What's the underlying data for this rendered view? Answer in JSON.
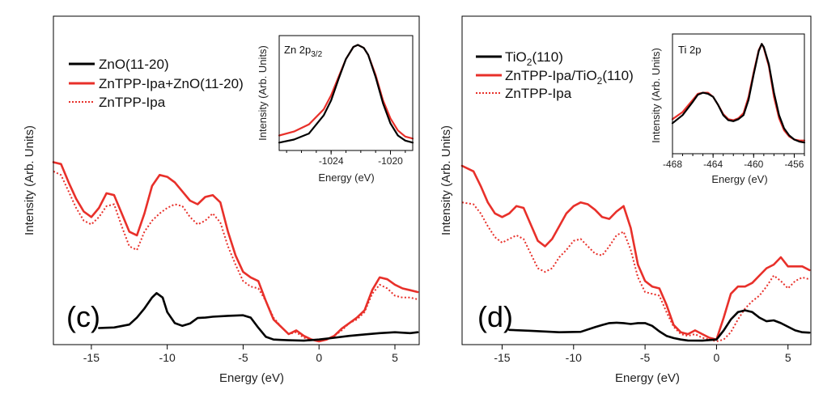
{
  "chart_data": [
    {
      "type": "line",
      "panel_label": "(c)",
      "xlabel": "Energy (eV)",
      "ylabel": "Intensity (Arb. Units)",
      "xlim": [
        -17.5,
        6.6
      ],
      "ylim": [
        0,
        1
      ],
      "xticks": [
        -15,
        -10,
        -5,
        0,
        5
      ],
      "y_ticks_labeled": false,
      "grid": false,
      "legend_position": "top-left",
      "series": [
        {
          "name": "ZnO(11-20)",
          "color": "#000000",
          "style": "solid",
          "x": [
            -14.5,
            -13.5,
            -12.5,
            -12,
            -11.5,
            -11,
            -10.7,
            -10.3,
            -10,
            -9.5,
            -9,
            -8.5,
            -8,
            -7.5,
            -7,
            -6,
            -5,
            -4.5,
            -4,
            -3.5,
            -3,
            -2.5,
            -2,
            -1,
            0,
            1,
            2,
            3,
            4,
            5,
            6,
            6.5
          ],
          "y": [
            0.073,
            0.076,
            0.092,
            0.13,
            0.18,
            0.24,
            0.264,
            0.24,
            0.16,
            0.1,
            0.085,
            0.098,
            0.128,
            0.13,
            0.135,
            0.14,
            0.143,
            0.13,
            0.075,
            0.025,
            0.01,
            0.008,
            0.006,
            0.004,
            0.01,
            0.02,
            0.03,
            0.038,
            0.045,
            0.05,
            0.045,
            0.05
          ]
        },
        {
          "name": "ZnTPP-Ipa+ZnO(11-20)",
          "color": "#e8302a",
          "style": "solid",
          "x": [
            -17.5,
            -17,
            -16.5,
            -16,
            -15.5,
            -15,
            -14.5,
            -14,
            -13.5,
            -13,
            -12.5,
            -12,
            -11.5,
            -11,
            -10.5,
            -10,
            -9.5,
            -9,
            -8.5,
            -8,
            -7.5,
            -7,
            -6.5,
            -6,
            -5.5,
            -5,
            -4.5,
            -4,
            -3.5,
            -3,
            -2.5,
            -2,
            -1.5,
            -1,
            -0.5,
            0,
            0.5,
            1,
            1.5,
            2,
            2.5,
            3,
            3.5,
            4,
            4.5,
            5,
            5.5,
            6,
            6.5
          ],
          "y": [
            0.98,
            0.97,
            0.87,
            0.78,
            0.71,
            0.68,
            0.73,
            0.81,
            0.8,
            0.7,
            0.6,
            0.58,
            0.7,
            0.85,
            0.91,
            0.9,
            0.87,
            0.82,
            0.77,
            0.75,
            0.79,
            0.8,
            0.76,
            0.6,
            0.47,
            0.38,
            0.35,
            0.33,
            0.22,
            0.12,
            0.08,
            0.04,
            0.06,
            0.03,
            0.01,
            0.0,
            0.01,
            0.03,
            0.07,
            0.1,
            0.13,
            0.17,
            0.28,
            0.35,
            0.34,
            0.31,
            0.29,
            0.28,
            0.27
          ]
        },
        {
          "name": "ZnTPP-Ipa",
          "color": "#e8302a",
          "style": "dotted",
          "x": [
            -17.5,
            -17,
            -16.5,
            -16,
            -15.5,
            -15,
            -14.5,
            -14,
            -13.5,
            -13,
            -12.5,
            -12,
            -11.5,
            -11,
            -10.5,
            -10,
            -9.5,
            -9,
            -8.5,
            -8,
            -7.5,
            -7,
            -6.5,
            -6,
            -5.5,
            -5,
            -4.5,
            -4,
            -3.5,
            -3,
            -2.5,
            -2,
            -1.5,
            -1,
            -0.5,
            0,
            0.5,
            1,
            1.5,
            2,
            2.5,
            3,
            3.5,
            4,
            4.5,
            5,
            5.5,
            6,
            6.5
          ],
          "y": [
            0.93,
            0.91,
            0.82,
            0.73,
            0.66,
            0.64,
            0.68,
            0.74,
            0.75,
            0.63,
            0.52,
            0.5,
            0.6,
            0.66,
            0.7,
            0.73,
            0.75,
            0.74,
            0.68,
            0.64,
            0.66,
            0.7,
            0.65,
            0.52,
            0.42,
            0.33,
            0.3,
            0.29,
            0.22,
            0.13,
            0.08,
            0.04,
            0.05,
            0.02,
            0.01,
            0.0,
            0.01,
            0.03,
            0.06,
            0.1,
            0.12,
            0.16,
            0.26,
            0.31,
            0.29,
            0.25,
            0.24,
            0.24,
            0.23
          ]
        }
      ],
      "inset": {
        "title": "Zn 2p3/2",
        "title_main": "Zn 2p",
        "title_sub": "3/2",
        "xlabel": "Energy (eV)",
        "ylabel": "Intensity (Arb. Units)",
        "xlim": [
          -1027.5,
          -1018.5
        ],
        "xticks": [
          -1024,
          -1020
        ],
        "ylim": [
          0,
          1.06
        ],
        "series": [
          {
            "name": "ZnO(11-20)",
            "color": "#000000",
            "x": [
              -1027.5,
              -1026.5,
              -1025.5,
              -1024.5,
              -1024,
              -1023.5,
              -1023,
              -1022.5,
              -1022.2,
              -1021.8,
              -1021.5,
              -1021,
              -1020.5,
              -1020,
              -1019.5,
              -1019,
              -1018.5
            ],
            "y": [
              0.03,
              0.06,
              0.12,
              0.3,
              0.45,
              0.66,
              0.86,
              0.98,
              1.0,
              0.97,
              0.9,
              0.68,
              0.42,
              0.22,
              0.1,
              0.05,
              0.03
            ]
          },
          {
            "name": "ZnTPP-Ipa+ZnO(11-20)",
            "color": "#e8302a",
            "x": [
              -1027.5,
              -1026.5,
              -1025.5,
              -1024.5,
              -1024,
              -1023.5,
              -1023,
              -1022.5,
              -1022.2,
              -1021.8,
              -1021.5,
              -1021,
              -1020.5,
              -1020,
              -1019.5,
              -1019,
              -1018.5
            ],
            "y": [
              0.1,
              0.14,
              0.21,
              0.36,
              0.5,
              0.68,
              0.86,
              0.98,
              1.0,
              0.97,
              0.9,
              0.7,
              0.45,
              0.27,
              0.15,
              0.09,
              0.07
            ]
          }
        ]
      }
    },
    {
      "type": "line",
      "panel_label": "(d)",
      "xlabel": "Energy (eV)",
      "ylabel": "Intensity (Arb. Units)",
      "xlim": [
        -17.8,
        6.6
      ],
      "ylim": [
        0,
        1
      ],
      "xticks": [
        -15,
        -10,
        -5,
        0,
        5
      ],
      "y_ticks_labeled": false,
      "grid": false,
      "legend_position": "top-left",
      "series": [
        {
          "name": "TiO2(110)",
          "name_main": "TiO",
          "name_sub": "2",
          "name_tail": "(110)",
          "color": "#000000",
          "style": "solid",
          "x": [
            -14.5,
            -13,
            -11,
            -9.5,
            -8.5,
            -8,
            -7.5,
            -7,
            -6.5,
            -6,
            -5.5,
            -5,
            -4.5,
            -4,
            -3.5,
            -3,
            -2.5,
            -2,
            -1,
            0,
            0.5,
            1,
            1.5,
            2,
            2.5,
            3,
            3.5,
            4,
            4.5,
            5,
            5.5,
            6,
            6.5
          ],
          "y": [
            0.063,
            0.058,
            0.05,
            0.052,
            0.078,
            0.09,
            0.1,
            0.102,
            0.1,
            0.095,
            0.1,
            0.1,
            0.085,
            0.055,
            0.03,
            0.018,
            0.01,
            0.005,
            0.004,
            0.01,
            0.06,
            0.12,
            0.16,
            0.17,
            0.16,
            0.13,
            0.11,
            0.115,
            0.1,
            0.08,
            0.06,
            0.05,
            0.048
          ]
        },
        {
          "name": "ZnTPP-Ipa/TiO2(110)",
          "name_main": "ZnTPP-Ipa/TiO",
          "name_sub": "2",
          "name_tail": "(110)",
          "color": "#e8302a",
          "style": "solid",
          "x": [
            -17.8,
            -17,
            -16.5,
            -16,
            -15.5,
            -15,
            -14.5,
            -14,
            -13.5,
            -13,
            -12.5,
            -12,
            -11.5,
            -11,
            -10.5,
            -10,
            -9.5,
            -9,
            -8.5,
            -8,
            -7.5,
            -7,
            -6.5,
            -6,
            -5.5,
            -5,
            -4.5,
            -4,
            -3.5,
            -3,
            -2.5,
            -2,
            -1.5,
            -1,
            -0.5,
            0,
            0.5,
            1,
            1.5,
            2,
            2.5,
            3,
            3.5,
            4,
            4.5,
            5,
            5.5,
            6,
            6.5
          ],
          "y": [
            0.96,
            0.93,
            0.85,
            0.76,
            0.7,
            0.68,
            0.7,
            0.74,
            0.73,
            0.64,
            0.55,
            0.52,
            0.56,
            0.63,
            0.7,
            0.74,
            0.76,
            0.75,
            0.72,
            0.68,
            0.67,
            0.71,
            0.74,
            0.62,
            0.42,
            0.33,
            0.3,
            0.29,
            0.2,
            0.09,
            0.05,
            0.04,
            0.06,
            0.04,
            0.02,
            0.01,
            0.13,
            0.26,
            0.3,
            0.3,
            0.32,
            0.36,
            0.4,
            0.42,
            0.46,
            0.41,
            0.41,
            0.41,
            0.39
          ]
        },
        {
          "name": "ZnTPP-Ipa",
          "color": "#e8302a",
          "style": "dotted",
          "x": [
            -17.8,
            -17,
            -16.5,
            -16,
            -15.5,
            -15,
            -14.5,
            -14,
            -13.5,
            -13,
            -12.5,
            -12,
            -11.5,
            -11,
            -10.5,
            -10,
            -9.5,
            -9,
            -8.5,
            -8,
            -7.5,
            -7,
            -6.5,
            -6,
            -5.5,
            -5,
            -4.5,
            -4,
            -3.5,
            -3,
            -2.5,
            -2,
            -1.5,
            -1,
            -0.5,
            0,
            0.5,
            1,
            1.5,
            2,
            2.5,
            3,
            3.5,
            4,
            4.5,
            5,
            5.5,
            6,
            6.5
          ],
          "y": [
            0.76,
            0.75,
            0.7,
            0.63,
            0.57,
            0.54,
            0.56,
            0.58,
            0.56,
            0.48,
            0.4,
            0.38,
            0.4,
            0.46,
            0.5,
            0.55,
            0.56,
            0.52,
            0.48,
            0.47,
            0.52,
            0.58,
            0.6,
            0.5,
            0.35,
            0.27,
            0.26,
            0.25,
            0.16,
            0.08,
            0.04,
            0.03,
            0.04,
            0.02,
            0.01,
            0.0,
            0.01,
            0.05,
            0.12,
            0.18,
            0.22,
            0.25,
            0.3,
            0.36,
            0.33,
            0.29,
            0.33,
            0.35,
            0.34
          ]
        }
      ],
      "inset": {
        "title": "Ti 2p",
        "xlabel": "Energy (eV)",
        "ylabel": "Intensity (Arb. Units)",
        "xlim": [
          -468,
          -455
        ],
        "xticks": [
          -468,
          -464,
          -460,
          -456
        ],
        "ylim": [
          0,
          1.05
        ],
        "series": [
          {
            "name": "TiO2(110)",
            "color": "#000000",
            "x": [
              -468,
              -467,
              -466,
              -465.5,
              -465,
              -464.5,
              -464,
              -463.5,
              -463,
              -462.5,
              -462,
              -461.5,
              -461,
              -460.5,
              -460,
              -459.5,
              -459.2,
              -459,
              -458.5,
              -458,
              -457.5,
              -457,
              -456.5,
              -456,
              -455.5,
              -455
            ],
            "y": [
              0.22,
              0.3,
              0.43,
              0.5,
              0.52,
              0.51,
              0.48,
              0.4,
              0.3,
              0.25,
              0.24,
              0.26,
              0.3,
              0.45,
              0.7,
              0.93,
              1.0,
              0.97,
              0.8,
              0.52,
              0.3,
              0.17,
              0.1,
              0.06,
              0.04,
              0.03
            ]
          },
          {
            "name": "ZnTPP-Ipa/TiO2(110)",
            "color": "#e8302a",
            "x": [
              -468,
              -467,
              -466,
              -465.5,
              -465,
              -464.5,
              -464,
              -463.5,
              -463,
              -462.5,
              -462,
              -461.5,
              -461,
              -460.5,
              -460,
              -459.5,
              -459.2,
              -459,
              -458.5,
              -458,
              -457.5,
              -457,
              -456.5,
              -456,
              -455.5,
              -455
            ],
            "y": [
              0.26,
              0.33,
              0.45,
              0.51,
              0.52,
              0.52,
              0.48,
              0.4,
              0.31,
              0.26,
              0.25,
              0.27,
              0.32,
              0.48,
              0.72,
              0.94,
              1.0,
              0.96,
              0.78,
              0.48,
              0.27,
              0.15,
              0.09,
              0.06,
              0.05,
              0.05
            ]
          }
        ]
      }
    }
  ]
}
